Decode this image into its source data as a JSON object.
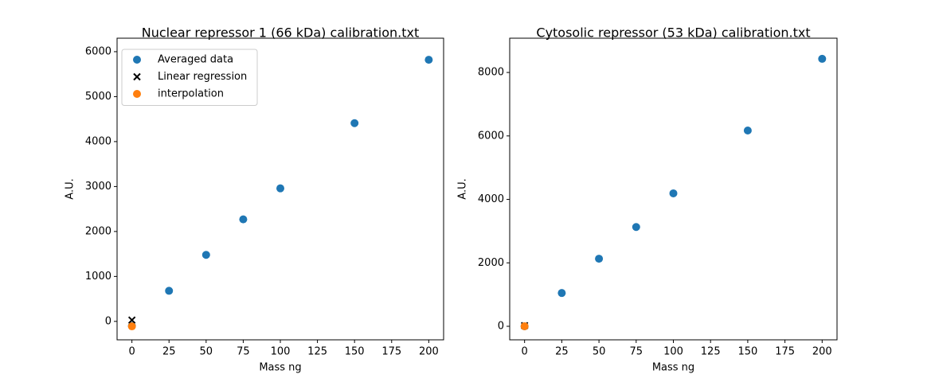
{
  "chart_data": [
    {
      "type": "scatter",
      "title": "Nuclear repressor 1 (66 kDa) calibration.txt",
      "x_label": "Mass ng",
      "y_label": "A.U.",
      "xlim": [
        -10,
        210
      ],
      "ylim": [
        -410,
        6300
      ],
      "xticks": [
        0,
        25,
        50,
        75,
        100,
        125,
        150,
        175,
        200
      ],
      "yticks": [
        0,
        1000,
        2000,
        3000,
        4000,
        5000,
        6000
      ],
      "legend": "upper left",
      "series": [
        {
          "name": "Averaged data",
          "color": "#1f77b4",
          "marker": "o",
          "x": [
            0,
            25,
            50,
            75,
            100,
            150,
            200
          ],
          "values": [
            -100,
            680,
            1480,
            2270,
            2960,
            4410,
            5820
          ]
        },
        {
          "name": "Linear regression",
          "color": "#000000",
          "marker": "x",
          "x": [
            0
          ],
          "values": [
            30
          ]
        },
        {
          "name": "interpolation",
          "color": "#ff7f0e",
          "marker": "o",
          "x": [
            0
          ],
          "values": [
            -110
          ]
        }
      ]
    },
    {
      "type": "scatter",
      "title": "Cytosolic repressor (53 kDa) calibration.txt",
      "x_label": "Mass ng",
      "y_label": "A.U.",
      "xlim": [
        -10,
        210
      ],
      "ylim": [
        -426,
        9080
      ],
      "xticks": [
        0,
        25,
        50,
        75,
        100,
        125,
        150,
        175,
        200
      ],
      "yticks": [
        0,
        2000,
        4000,
        6000,
        8000
      ],
      "series": [
        {
          "color": "#1f77b4",
          "marker": "o",
          "x": [
            0,
            25,
            50,
            75,
            100,
            150,
            200
          ],
          "values": [
            0,
            1050,
            2130,
            3130,
            4190,
            6170,
            8430
          ]
        },
        {
          "color": "#000000",
          "marker": "x",
          "x": [
            0
          ],
          "values": [
            20
          ]
        },
        {
          "color": "#ff7f0e",
          "marker": "o",
          "x": [
            0
          ],
          "values": [
            0
          ]
        }
      ]
    }
  ]
}
